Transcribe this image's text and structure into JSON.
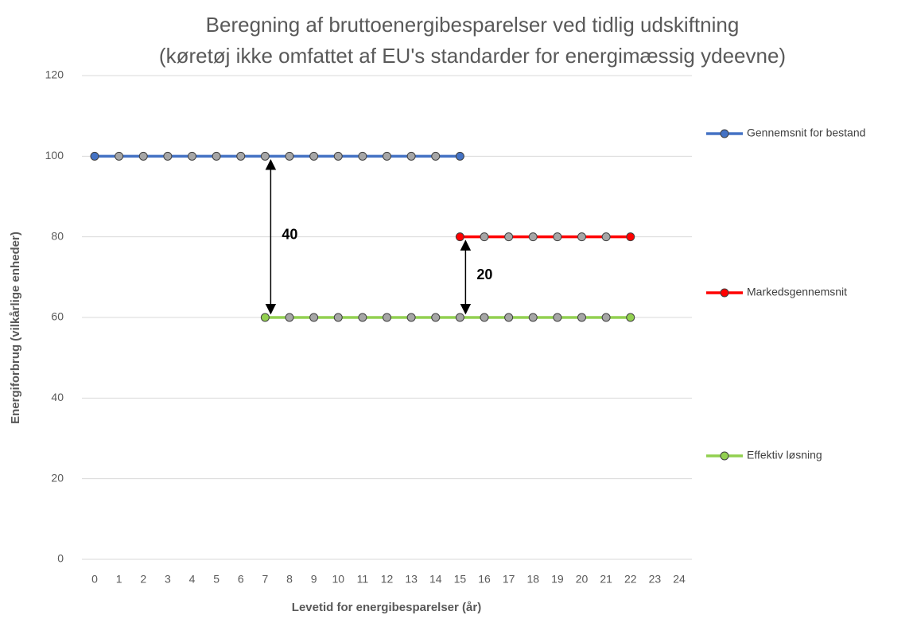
{
  "chart_data": {
    "type": "line",
    "title": [
      "Beregning af bruttoenergibesparelser ved tidlig udskiftning",
      "(køretøj ikke omfattet af EU's standarder for energimæssig ydeevne)"
    ],
    "x_label": "Levetid for energibesparelser (år)",
    "y_label": "Energiforbrug (vilkårlige enheder)",
    "categories": [
      "0",
      "1",
      "2",
      "3",
      "4",
      "5",
      "6",
      "7",
      "8",
      "9",
      "10",
      "11",
      "12",
      "13",
      "14",
      "15",
      "16",
      "17",
      "18",
      "19",
      "20",
      "21",
      "22",
      "23",
      "24"
    ],
    "series": [
      {
        "name": "Gennemsnit for bestand",
        "color": "#4472c4",
        "values": [
          100,
          100,
          100,
          100,
          100,
          100,
          100,
          100,
          100,
          100,
          100,
          100,
          100,
          100,
          100,
          100,
          null,
          null,
          null,
          null,
          null,
          null,
          null,
          null,
          null
        ]
      },
      {
        "name": "Markedsgennemsnit",
        "color": "#ff0000",
        "values": [
          null,
          null,
          null,
          null,
          null,
          null,
          null,
          null,
          null,
          null,
          null,
          null,
          null,
          null,
          null,
          80,
          80,
          80,
          80,
          80,
          80,
          80,
          80,
          null,
          null
        ]
      },
      {
        "name": "Effektiv løsning",
        "color": "#92d050",
        "values": [
          null,
          null,
          null,
          null,
          null,
          null,
          null,
          60,
          60,
          60,
          60,
          60,
          60,
          60,
          60,
          60,
          60,
          60,
          60,
          60,
          60,
          60,
          60,
          null,
          null
        ]
      }
    ],
    "annotations": [
      {
        "text": "40",
        "x": 7,
        "from": 100,
        "to": 60
      },
      {
        "text": "20",
        "x": 15,
        "from": 80,
        "to": 60
      }
    ],
    "ylim": [
      0,
      120
    ],
    "yticks": [
      0,
      20,
      40,
      60,
      80,
      100,
      120
    ],
    "grid": true,
    "legend": "right",
    "marker_fill": "#a6a6a6"
  }
}
